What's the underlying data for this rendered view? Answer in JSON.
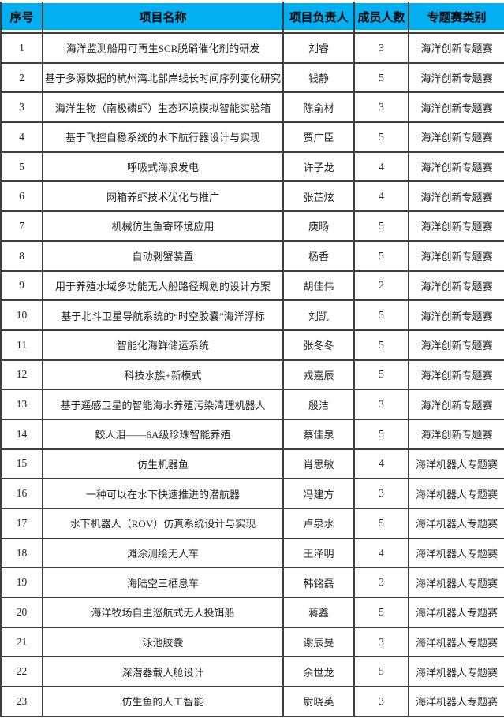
{
  "accent_color": "#00B0F0",
  "border_color": "#3f3f3f",
  "table": {
    "columns": {
      "no": "序号",
      "name": "项目名称",
      "leader": "项目负责人",
      "members": "成员人数",
      "category": "专题赛类别"
    },
    "rows": [
      {
        "no": "1",
        "name": "海洋监测船用可再生SCR脱硝催化剂的研发",
        "leader": "刘睿",
        "members": "3",
        "category": "海洋创新专题赛"
      },
      {
        "no": "2",
        "name": "基于多源数据的杭州湾北部岸线长时间序列变化研究",
        "leader": "钱静",
        "members": "5",
        "category": "海洋创新专题赛"
      },
      {
        "no": "3",
        "name": "海洋生物（南极磷虾）生态环境模拟智能实验箱",
        "leader": "陈俞材",
        "members": "3",
        "category": "海洋创新专题赛"
      },
      {
        "no": "4",
        "name": "基于飞控自稳系统的水下航行器设计与实现",
        "leader": "贾广臣",
        "members": "5",
        "category": "海洋创新专题赛"
      },
      {
        "no": "5",
        "name": "呼吸式海浪发电",
        "leader": "许子龙",
        "members": "4",
        "category": "海洋创新专题赛"
      },
      {
        "no": "6",
        "name": "网箱养虾技术优化与推广",
        "leader": "张芷炫",
        "members": "4",
        "category": "海洋创新专题赛"
      },
      {
        "no": "7",
        "name": "机械仿生鱼寄环境应用",
        "leader": "庾旸",
        "members": "5",
        "category": "海洋创新专题赛"
      },
      {
        "no": "8",
        "name": "自动剥蟹装置",
        "leader": "杨香",
        "members": "5",
        "category": "海洋创新专题赛"
      },
      {
        "no": "9",
        "name": "用于养殖水域多功能无人船路径规划的设计方案",
        "leader": "胡佳伟",
        "members": "2",
        "category": "海洋创新专题赛"
      },
      {
        "no": "10",
        "name": "基于北斗卫星导航系统的“时空胶囊”海洋浮标",
        "leader": "刘凯",
        "members": "5",
        "category": "海洋创新专题赛"
      },
      {
        "no": "11",
        "name": "智能化海鲜储运系统",
        "leader": "张冬冬",
        "members": "5",
        "category": "海洋创新专题赛"
      },
      {
        "no": "12",
        "name": "科技水族+新模式",
        "leader": "戎嘉辰",
        "members": "5",
        "category": "海洋创新专题赛"
      },
      {
        "no": "13",
        "name": "基于遥感卫星的智能海水养殖污染清理机器人",
        "leader": "殷洁",
        "members": "3",
        "category": "海洋创新专题赛"
      },
      {
        "no": "14",
        "name": "鲛人泪——6A级珍珠智能养殖",
        "leader": "蔡佳泉",
        "members": "5",
        "category": "海洋创新专题赛"
      },
      {
        "no": "15",
        "name": "仿生机器鱼",
        "leader": "肖思敏",
        "members": "4",
        "category": "海洋机器人专题赛"
      },
      {
        "no": "16",
        "name": "一种可以在水下快速推进的潜航器",
        "leader": "冯建方",
        "members": "3",
        "category": "海洋机器人专题赛"
      },
      {
        "no": "17",
        "name": "水下机器人（ROV）仿真系统设计与实现",
        "leader": "卢泉水",
        "members": "5",
        "category": "海洋机器人专题赛"
      },
      {
        "no": "18",
        "name": "滩涂测绘无人车",
        "leader": "王泽明",
        "members": "4",
        "category": "海洋机器人专题赛"
      },
      {
        "no": "19",
        "name": "海陆空三栖息车",
        "leader": "韩铭磊",
        "members": "3",
        "category": "海洋机器人专题赛"
      },
      {
        "no": "20",
        "name": "海洋牧场自主巡航式无人投饵船",
        "leader": "蒋鑫",
        "members": "5",
        "category": "海洋机器人专题赛"
      },
      {
        "no": "21",
        "name": "泳池胶囊",
        "leader": "谢辰旻",
        "members": "3",
        "category": "海洋机器人专题赛"
      },
      {
        "no": "22",
        "name": "深潜器载人舱设计",
        "leader": "余世龙",
        "members": "5",
        "category": "海洋机器人专题赛"
      },
      {
        "no": "23",
        "name": "仿生鱼的人工智能",
        "leader": "尉晓英",
        "members": "3",
        "category": "海洋机器人专题赛"
      }
    ]
  }
}
